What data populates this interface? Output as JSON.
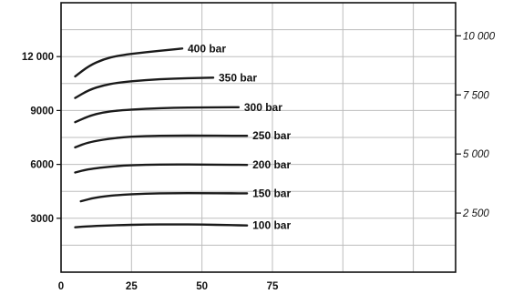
{
  "chart_data": {
    "type": "line",
    "title": "",
    "xlabel": "",
    "ylabel": "",
    "xlim": [
      0,
      140
    ],
    "ylim": [
      0,
      15000
    ],
    "y2lim": [
      0,
      11400
    ],
    "grid": true,
    "x_ticks": [
      {
        "value": 0,
        "label": "0"
      },
      {
        "value": 25,
        "label": "25"
      },
      {
        "value": 50,
        "label": "50"
      },
      {
        "value": 75,
        "label": "75"
      }
    ],
    "y_ticks_left": [
      {
        "value": 3000,
        "label": "3000"
      },
      {
        "value": 6000,
        "label": "6000"
      },
      {
        "value": 9000,
        "label": "9000"
      },
      {
        "value": 12000,
        "label": "12 000"
      }
    ],
    "y_ticks_right": [
      {
        "value": 2500,
        "label": "2 500"
      },
      {
        "value": 5000,
        "label": "5 000"
      },
      {
        "value": 7500,
        "label": "7 500"
      },
      {
        "value": 10000,
        "label": "10 000"
      }
    ],
    "series": [
      {
        "name": "400 bar",
        "x": [
          5,
          10,
          15,
          20,
          30,
          40,
          43
        ],
        "y": [
          10900,
          11500,
          11850,
          12050,
          12250,
          12400,
          12450
        ]
      },
      {
        "name": "350 bar",
        "x": [
          5,
          10,
          15,
          20,
          30,
          40,
          50,
          54
        ],
        "y": [
          9700,
          10150,
          10400,
          10550,
          10700,
          10780,
          10820,
          10830
        ]
      },
      {
        "name": "300 bar",
        "x": [
          5,
          10,
          15,
          20,
          30,
          40,
          50,
          60,
          63
        ],
        "y": [
          8350,
          8700,
          8900,
          9000,
          9100,
          9150,
          9170,
          9180,
          9180
        ]
      },
      {
        "name": "250 bar",
        "x": [
          5,
          10,
          20,
          30,
          40,
          50,
          60,
          66
        ],
        "y": [
          6950,
          7250,
          7500,
          7580,
          7600,
          7600,
          7590,
          7590
        ]
      },
      {
        "name": "200 bar",
        "x": [
          5,
          10,
          20,
          30,
          40,
          50,
          60,
          66
        ],
        "y": [
          5550,
          5750,
          5920,
          5980,
          6000,
          5990,
          5980,
          5970
        ]
      },
      {
        "name": "150 bar",
        "x": [
          7,
          12,
          20,
          30,
          40,
          50,
          60,
          66
        ],
        "y": [
          3950,
          4150,
          4300,
          4380,
          4400,
          4400,
          4390,
          4390
        ]
      },
      {
        "name": "100 bar",
        "x": [
          5,
          10,
          20,
          30,
          40,
          50,
          60,
          66
        ],
        "y": [
          2500,
          2560,
          2620,
          2650,
          2660,
          2650,
          2620,
          2600
        ]
      }
    ]
  }
}
